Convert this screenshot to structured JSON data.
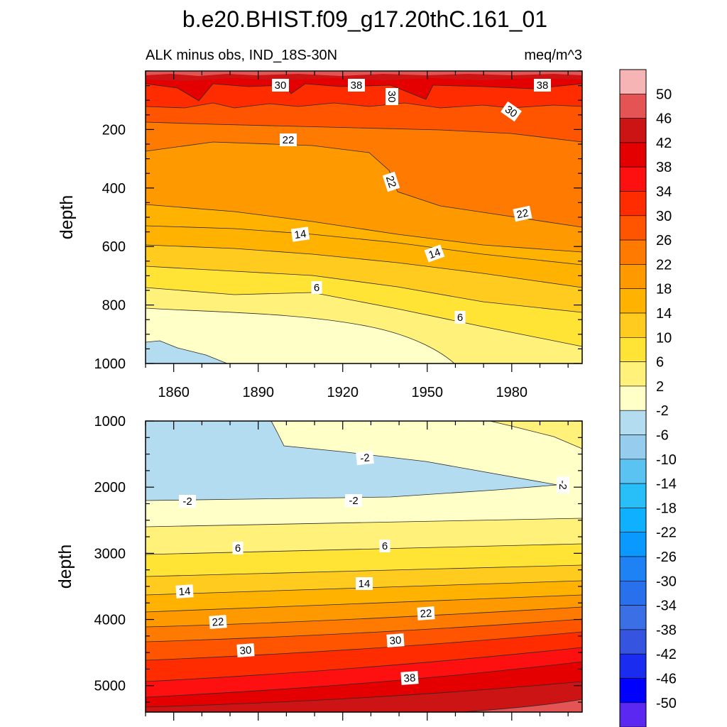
{
  "title": "b.e20.BHIST.f09_g17.20thC.161_01",
  "chart_data": {
    "type": "heatmap",
    "subtitle_left": "ALK minus obs, IND_18S-30N",
    "units": "meq/m^3",
    "xlabel": "",
    "ylabel": "depth",
    "xlim": [
      1850,
      2005
    ],
    "x_ticks": [
      1860,
      1890,
      1920,
      1950,
      1980
    ],
    "colorbar": {
      "levels": [
        50,
        46,
        42,
        38,
        34,
        30,
        26,
        22,
        18,
        14,
        10,
        6,
        2,
        -2,
        -6,
        -10,
        -14,
        -18,
        -22,
        -26,
        -30,
        -34,
        -38,
        -42,
        -46,
        -50
      ],
      "colors": [
        "#F7B4B4",
        "#E55454",
        "#CC1414",
        "#E40000",
        "#FF1010",
        "#FF2C00",
        "#FF5500",
        "#FF7A00",
        "#FF9900",
        "#FFB300",
        "#FFCB1E",
        "#FFE335",
        "#FFF179",
        "#FFFFC8",
        "#B4DCF0",
        "#96CCED",
        "#5AC3F2",
        "#28BEF8",
        "#0FB0FF",
        "#0A9AFF",
        "#1E82F5",
        "#2870EC",
        "#3B6FE6",
        "#3555E0",
        "#1A2CF0",
        "#0000FF",
        "#5A28F0",
        "#8232E6"
      ]
    },
    "panels": [
      {
        "name": "upper",
        "ylim": [
          0,
          1000
        ],
        "y_ticks": [
          200,
          400,
          600,
          800,
          1000
        ],
        "contour_labels": [
          "30",
          "38",
          "30",
          "38",
          "30",
          "22",
          "22",
          "22",
          "14",
          "14",
          "6",
          "6"
        ]
      },
      {
        "name": "lower",
        "ylim": [
          1000,
          5400
        ],
        "y_ticks": [
          1000,
          2000,
          3000,
          4000,
          5000
        ],
        "contour_labels": [
          "-2",
          "-2",
          "-2",
          "-2",
          "6",
          "6",
          "14",
          "14",
          "22",
          "22",
          "30",
          "30",
          "38"
        ]
      }
    ]
  }
}
